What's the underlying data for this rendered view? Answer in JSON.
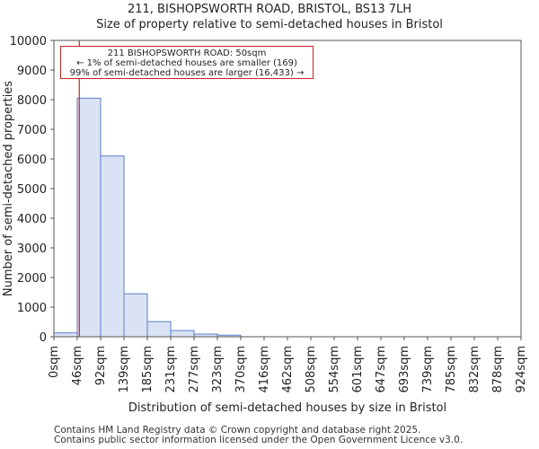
{
  "header": {
    "title_line1": "211, BISHOPSWORTH ROAD, BRISTOL, BS13 7LH",
    "title_line2": "Size of property relative to semi-detached houses in Bristol"
  },
  "footer": {
    "line1": "Contains HM Land Registry data © Crown copyright and database right 2025.",
    "line2": "Contains public sector information licensed under the Open Government Licence v3.0."
  },
  "annotation": {
    "line1": "211 BISHOPSWORTH ROAD: 50sqm",
    "line2": "← 1% of semi-detached houses are smaller (169)",
    "line3": "99% of semi-detached houses are larger (16,433) →"
  },
  "colors": {
    "bar_fill": "#dae3f5",
    "bar_stroke": "#5b7fc4",
    "marker": "#cc2222",
    "axis": "#555555"
  },
  "chart_data": {
    "type": "bar",
    "title": "211, BISHOPSWORTH ROAD, BRISTOL, BS13 7LH — Size of property relative to semi-detached houses in Bristol",
    "xlabel": "Distribution of semi-detached houses by size in Bristol",
    "ylabel": "Number of semi-detached properties",
    "x_ticks": [
      "0sqm",
      "46sqm",
      "92sqm",
      "139sqm",
      "185sqm",
      "231sqm",
      "277sqm",
      "323sqm",
      "370sqm",
      "416sqm",
      "462sqm",
      "508sqm",
      "554sqm",
      "601sqm",
      "647sqm",
      "693sqm",
      "739sqm",
      "785sqm",
      "832sqm",
      "878sqm",
      "924sqm"
    ],
    "y_ticks": [
      0,
      1000,
      2000,
      3000,
      4000,
      5000,
      6000,
      7000,
      8000,
      9000,
      10000
    ],
    "ylim": [
      0,
      10000
    ],
    "bin_edges": [
      0,
      46,
      92,
      139,
      185,
      231,
      277,
      323,
      370,
      416,
      462,
      508,
      554,
      601,
      647,
      693,
      739,
      785,
      832,
      878,
      924
    ],
    "values": [
      130,
      8050,
      6100,
      1450,
      510,
      210,
      90,
      55,
      0,
      0,
      0,
      0,
      0,
      0,
      0,
      0,
      0,
      0,
      0,
      0
    ],
    "marker_value_sqm": 50,
    "marker_label": "211 BISHOPSWORTH ROAD: 50sqm"
  }
}
